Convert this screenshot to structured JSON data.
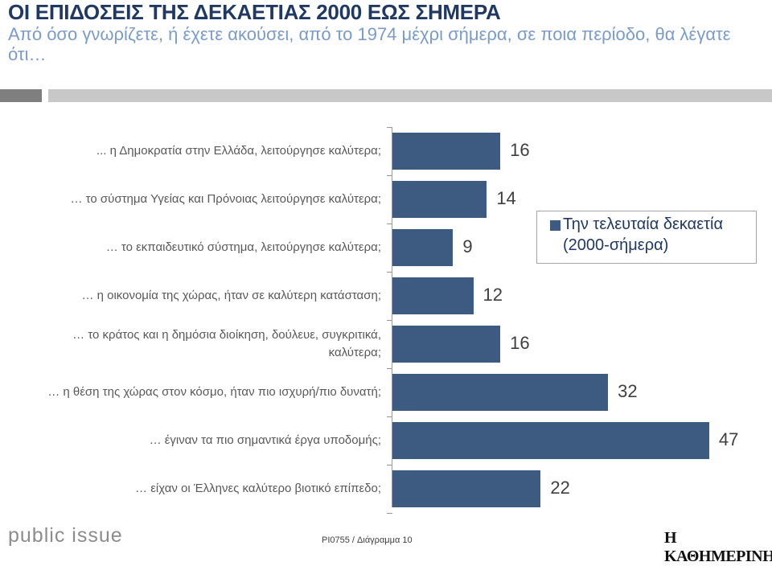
{
  "header": {
    "title": "ΟΙ ΕΠΙΔΟΣΕΙΣ ΤΗΣ ΔΕΚΑΕΤΙΑΣ 2000 ΕΩΣ ΣΗΜΕΡΑ",
    "subtitle": "Από όσο γνωρίζετε, ή έχετε ακούσει, από το 1974 μέχρι σήμερα, σε ποια περίοδο, θα λέγατε ότι…"
  },
  "chart_data": {
    "type": "bar",
    "orientation": "horizontal",
    "categories": [
      "... η Δημοκρατία στην Ελλάδα, λειτούργησε καλύτερα;",
      "… το σύστημα Υγείας και Πρόνοιας  λειτούργησε καλύτερα;",
      "… το εκπαιδευτικό σύστημα, λειτούργησε καλύτερα;",
      "… η οικονομία της χώρας, ήταν σε καλύτερη κατάσταση;",
      "… το κράτος και η δημόσια διοίκηση, δούλευε, συγκριτικά, καλύτερα;",
      "… η θέση της χώρας στον κόσμο,  ήταν πιο ισχυρή/πιο δυνατή;",
      "… έγιναν τα πιο σημαντικά έργα υποδομής;",
      "… είχαν οι Έλληνες καλύτερο βιοτικό επίπεδο;"
    ],
    "series": [
      {
        "name": "Την τελευταία δεκαετία (2000-σήμερα)",
        "values": [
          16,
          14,
          9,
          12,
          16,
          32,
          47,
          22
        ],
        "color": "#3d5a80"
      }
    ],
    "xlim": [
      0,
      50
    ],
    "grid": false,
    "legend_position": "right"
  },
  "footer": {
    "brand": "public issue",
    "code": "PI0755 / Διάγραμμα 10",
    "newspaper": "Η ΚΑΘΗΜΕΡΙΝΗ"
  }
}
